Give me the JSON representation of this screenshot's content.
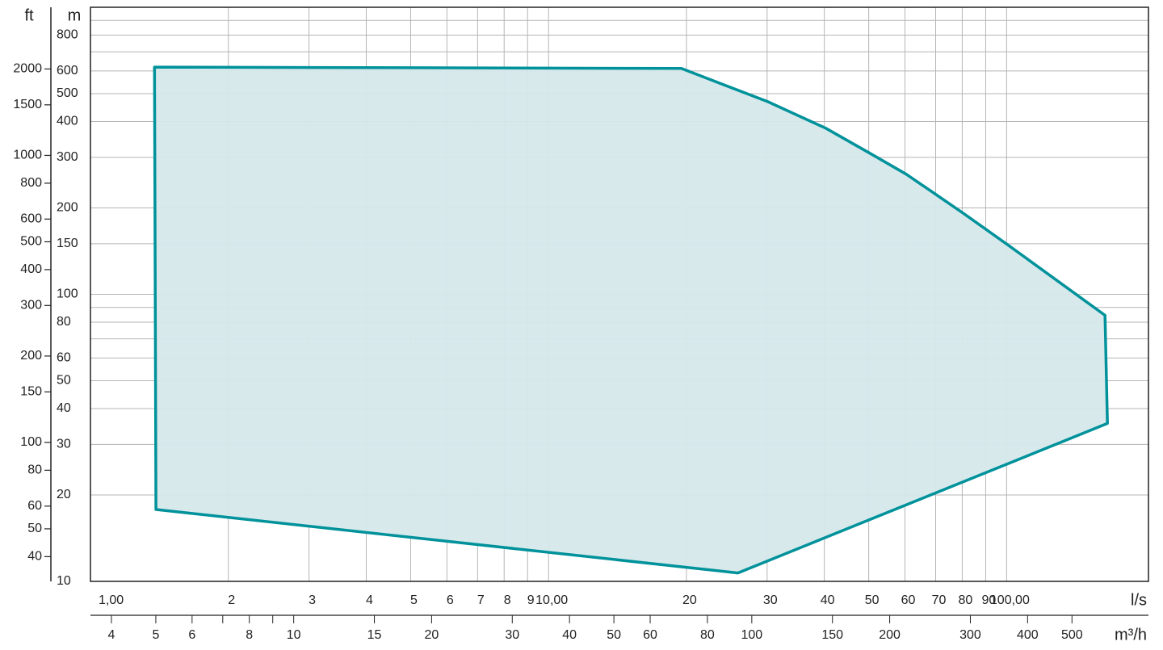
{
  "chart_data": {
    "type": "area",
    "log_scale": true,
    "grid": true,
    "x_label": "l/s",
    "x2_label": "m³/h",
    "y_label": "m",
    "y2_label": "ft",
    "xlim": [
      1,
      204
    ],
    "xticks": [
      {
        "value": 1,
        "label": "1,00"
      },
      2,
      3,
      4,
      5,
      6,
      7,
      8,
      9,
      {
        "value": 10,
        "label": "10,00"
      },
      20,
      30,
      40,
      50,
      60,
      70,
      80,
      90,
      {
        "value": 100,
        "label": "100,00"
      }
    ],
    "x2lim": [
      3.6,
      734.4
    ],
    "x2ticks": [
      4,
      5,
      6,
      8,
      10,
      15,
      20,
      30,
      40,
      50,
      60,
      80,
      100,
      150,
      200,
      300,
      400,
      500
    ],
    "x2minor": [
      7,
      9
    ],
    "ylim": [
      10,
      1000
    ],
    "yticks": [
      800,
      600,
      500,
      400,
      300,
      200,
      150,
      100,
      80,
      60,
      50,
      40,
      30,
      20,
      10
    ],
    "yminor": [
      900,
      700,
      90,
      70
    ],
    "y2lim": [
      32.808,
      3280.8
    ],
    "y2ticks": [
      2000,
      1500,
      1000,
      800,
      600,
      500,
      400,
      300,
      200,
      150,
      100,
      80,
      60,
      50,
      40
    ],
    "series": [
      {
        "color": "#00929b",
        "fill": "#d6e8eb",
        "x": [
          1.38,
          19.5,
          30.1,
          40.3,
          50.3,
          60.4,
          80.3,
          100.4,
          164,
          166,
          25.9,
          1.39
        ],
        "y": [
          619,
          612,
          469,
          379,
          310,
          262,
          192,
          149,
          84.5,
          35.5,
          10.7,
          17.8
        ]
      }
    ]
  }
}
